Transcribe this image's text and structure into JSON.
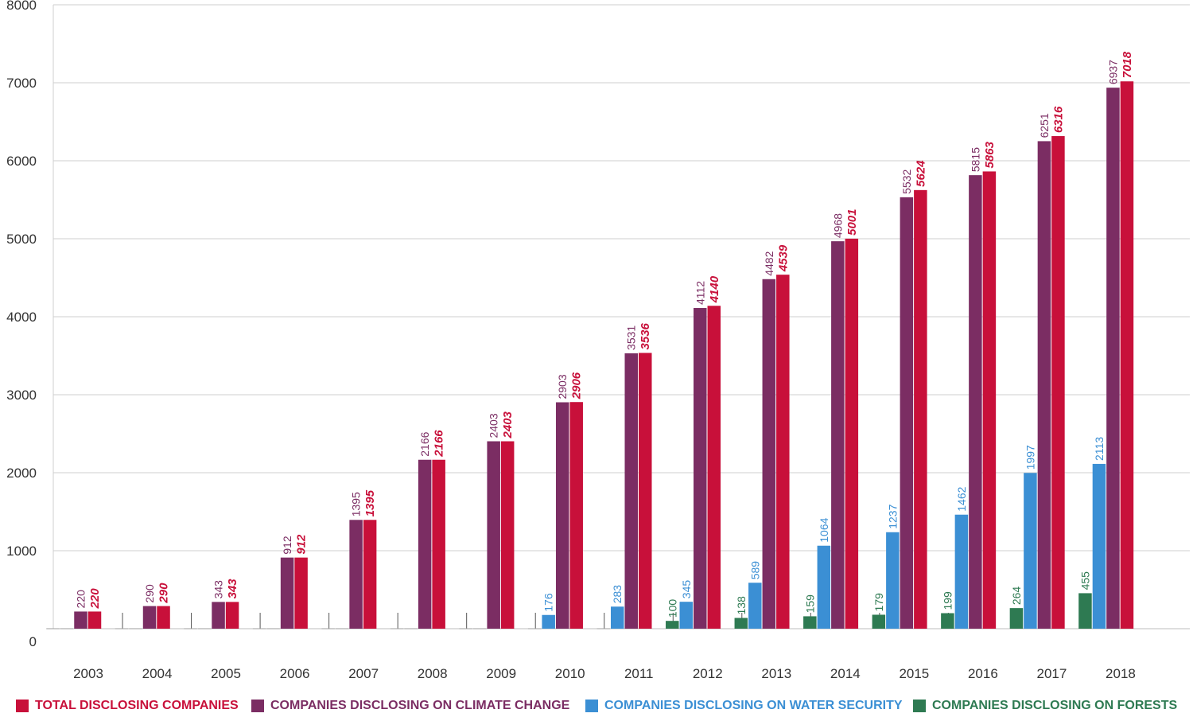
{
  "chart_data": {
    "type": "bar",
    "title": "",
    "xlabel": "",
    "ylabel": "",
    "ylim": [
      0,
      8000
    ],
    "yticks": [
      0,
      1000,
      2000,
      3000,
      4000,
      5000,
      6000,
      7000,
      8000
    ],
    "grid": true,
    "legend_position": "bottom",
    "categories": [
      "2003",
      "2004",
      "2005",
      "2006",
      "2007",
      "2008",
      "2009",
      "2010",
      "2011",
      "2012",
      "2013",
      "2014",
      "2015",
      "2016",
      "2017",
      "2018"
    ],
    "series": [
      {
        "name": "COMPANIES DISCLOSING ON FORESTS",
        "color": "#2e7a52",
        "values": [
          null,
          null,
          null,
          null,
          null,
          null,
          null,
          null,
          null,
          100,
          138,
          159,
          179,
          199,
          264,
          455
        ]
      },
      {
        "name": "COMPANIES DISCLOSING ON WATER SECURITY",
        "color": "#3b8fd4",
        "values": [
          null,
          null,
          null,
          null,
          null,
          null,
          null,
          176,
          283,
          345,
          589,
          1064,
          1237,
          1462,
          1997,
          2113
        ]
      },
      {
        "name": "COMPANIES DISCLOSING ON CLIMATE CHANGE",
        "color": "#7b2d63",
        "values": [
          220,
          290,
          343,
          912,
          1395,
          2166,
          2403,
          2903,
          3531,
          4112,
          4482,
          4968,
          5532,
          5815,
          6251,
          6937
        ]
      },
      {
        "name": "TOTAL DISCLOSING COMPANIES",
        "color": "#c8103a",
        "values": [
          220,
          290,
          343,
          912,
          1395,
          2166,
          2403,
          2906,
          3536,
          4140,
          4539,
          5001,
          5624,
          5863,
          6316,
          7018
        ]
      }
    ],
    "legend": [
      {
        "label": "TOTAL DISCLOSING COMPANIES",
        "color": "#c8103a"
      },
      {
        "label": "COMPANIES DISCLOSING ON CLIMATE CHANGE",
        "color": "#7b2d63"
      },
      {
        "label": "COMPANIES DISCLOSING ON WATER SECURITY",
        "color": "#3b8fd4"
      },
      {
        "label": "COMPANIES DISCLOSING ON FORESTS",
        "color": "#2e7a52"
      }
    ]
  }
}
